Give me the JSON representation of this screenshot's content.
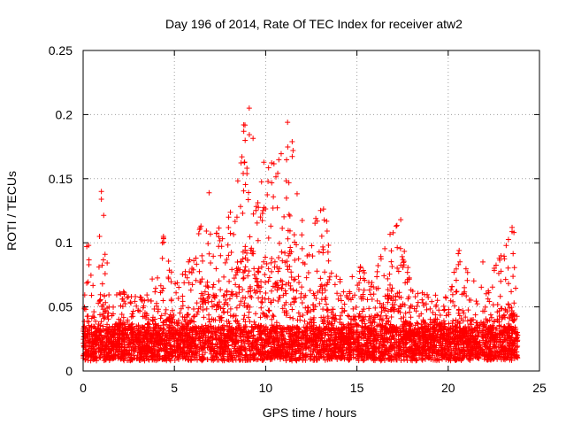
{
  "chart_data": {
    "type": "scatter",
    "title": "Day 196 of 2014, Rate Of TEC Index for receiver atw2",
    "xlabel": "GPS time / hours",
    "ylabel": "ROTI / TECUs",
    "xlim": [
      0,
      25
    ],
    "ylim": [
      0,
      0.25
    ],
    "xticks": [
      0,
      5,
      10,
      15,
      20,
      25
    ],
    "xtick_labels": [
      "0",
      "5",
      "10",
      "15",
      "20",
      "25"
    ],
    "yticks": [
      0,
      0.05,
      0.1,
      0.15,
      0.2,
      0.25
    ],
    "ytick_labels": [
      "0",
      "0.05",
      "0.1",
      "0.15",
      "0.2",
      "0.25"
    ],
    "grid": true,
    "marker": "+",
    "color": "#ff0000",
    "series": [
      {
        "name": "ROTI",
        "x_range": [
          0,
          23.8
        ],
        "baseline_range": [
          0.008,
          0.035
        ],
        "envelope": [
          {
            "x": 0.0,
            "y": 0.05
          },
          {
            "x": 0.3,
            "y": 0.098
          },
          {
            "x": 0.6,
            "y": 0.06
          },
          {
            "x": 1.0,
            "y": 0.14
          },
          {
            "x": 1.5,
            "y": 0.07
          },
          {
            "x": 2.5,
            "y": 0.06
          },
          {
            "x": 3.5,
            "y": 0.06
          },
          {
            "x": 4.4,
            "y": 0.105
          },
          {
            "x": 5.0,
            "y": 0.07
          },
          {
            "x": 6.0,
            "y": 0.09
          },
          {
            "x": 6.9,
            "y": 0.14
          },
          {
            "x": 7.5,
            "y": 0.11
          },
          {
            "x": 8.2,
            "y": 0.13
          },
          {
            "x": 8.7,
            "y": 0.19
          },
          {
            "x": 9.1,
            "y": 0.205
          },
          {
            "x": 9.6,
            "y": 0.16
          },
          {
            "x": 10.3,
            "y": 0.175
          },
          {
            "x": 10.8,
            "y": 0.175
          },
          {
            "x": 11.2,
            "y": 0.195
          },
          {
            "x": 11.7,
            "y": 0.17
          },
          {
            "x": 12.2,
            "y": 0.09
          },
          {
            "x": 12.7,
            "y": 0.12
          },
          {
            "x": 13.2,
            "y": 0.13
          },
          {
            "x": 13.8,
            "y": 0.08
          },
          {
            "x": 14.5,
            "y": 0.06
          },
          {
            "x": 15.0,
            "y": 0.09
          },
          {
            "x": 15.8,
            "y": 0.07
          },
          {
            "x": 16.5,
            "y": 0.1
          },
          {
            "x": 17.3,
            "y": 0.12
          },
          {
            "x": 18.0,
            "y": 0.065
          },
          {
            "x": 19.0,
            "y": 0.06
          },
          {
            "x": 20.0,
            "y": 0.06
          },
          {
            "x": 20.6,
            "y": 0.095
          },
          {
            "x": 21.2,
            "y": 0.075
          },
          {
            "x": 22.0,
            "y": 0.065
          },
          {
            "x": 22.8,
            "y": 0.09
          },
          {
            "x": 23.5,
            "y": 0.113
          },
          {
            "x": 23.8,
            "y": 0.05
          }
        ],
        "outliers": [
          {
            "x": 9.1,
            "y": 0.205
          },
          {
            "x": 11.2,
            "y": 0.194
          },
          {
            "x": 8.8,
            "y": 0.192
          },
          {
            "x": 8.8,
            "y": 0.187
          },
          {
            "x": 1.0,
            "y": 0.14
          },
          {
            "x": 1.0,
            "y": 0.134
          },
          {
            "x": 6.9,
            "y": 0.139
          },
          {
            "x": 0.3,
            "y": 0.098
          },
          {
            "x": 0.2,
            "y": 0.097
          },
          {
            "x": 0.9,
            "y": 0.105
          },
          {
            "x": 4.4,
            "y": 0.105
          },
          {
            "x": 17.4,
            "y": 0.118
          },
          {
            "x": 23.5,
            "y": 0.112
          },
          {
            "x": 23.6,
            "y": 0.108
          },
          {
            "x": 20.6,
            "y": 0.094
          },
          {
            "x": 22.8,
            "y": 0.088
          },
          {
            "x": 21.9,
            "y": 0.085
          },
          {
            "x": 1.2,
            "y": 0.091
          },
          {
            "x": 8.7,
            "y": 0.167
          },
          {
            "x": 11.5,
            "y": 0.172
          }
        ]
      }
    ]
  }
}
